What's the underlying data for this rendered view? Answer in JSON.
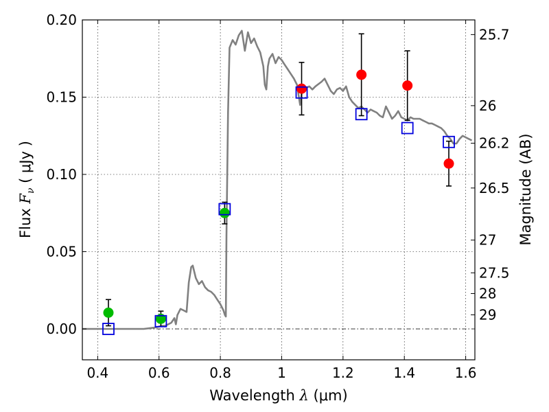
{
  "chart_data": {
    "type": "scatter",
    "title": "",
    "xlabel": "Wavelength  λ (μm)",
    "ylabel": "Flux  F_ν  ( μJy )",
    "ylabel_parts": {
      "pre": "Flux  ",
      "var": "F",
      "sub": "ν",
      "post": "  ( μJy )"
    },
    "xlabel_parts": {
      "pre": "Wavelength  ",
      "var": "λ",
      "post": " (μm)"
    },
    "y2label": "Magnitude (AB)",
    "xlim": [
      0.35,
      1.63
    ],
    "ylim": [
      -0.02,
      0.2
    ],
    "grid": true,
    "x_ticks": [
      {
        "value": 0.4,
        "label": "0.4"
      },
      {
        "value": 0.6,
        "label": "0.6"
      },
      {
        "value": 0.8,
        "label": "0.8"
      },
      {
        "value": 1.0,
        "label": "1"
      },
      {
        "value": 1.2,
        "label": "1.2"
      },
      {
        "value": 1.4,
        "label": "1.4"
      },
      {
        "value": 1.6,
        "label": "1.6"
      }
    ],
    "y_ticks": [
      {
        "value": 0.0,
        "label": "0.00"
      },
      {
        "value": 0.05,
        "label": "0.05"
      },
      {
        "value": 0.1,
        "label": "0.10"
      },
      {
        "value": 0.15,
        "label": "0.15"
      },
      {
        "value": 0.2,
        "label": "0.20"
      }
    ],
    "y2_ticks": [
      {
        "flux": 0.1905,
        "label": "25.7"
      },
      {
        "flux": 0.1445,
        "label": "26"
      },
      {
        "flux": 0.1202,
        "label": "26.2"
      },
      {
        "flux": 0.0912,
        "label": "26.5"
      },
      {
        "flux": 0.0575,
        "label": "27"
      },
      {
        "flux": 0.0363,
        "label": "27.5"
      },
      {
        "flux": 0.0229,
        "label": "28"
      },
      {
        "flux": 0.0091,
        "label": "29"
      }
    ],
    "colors": {
      "model": "#808080",
      "green": "#00bb00",
      "red": "#ff0000",
      "square": "#0000dd",
      "zero_line": "#000000"
    },
    "series": [
      {
        "kind": "line",
        "points": [
          [
            0.35,
            0.0
          ],
          [
            0.55,
            0.0
          ],
          [
            0.57,
            0.0005
          ],
          [
            0.59,
            0.001
          ],
          [
            0.6,
            0.0015
          ],
          [
            0.61,
            0.002
          ],
          [
            0.62,
            0.002
          ],
          [
            0.63,
            0.003
          ],
          [
            0.64,
            0.004
          ],
          [
            0.65,
            0.007
          ],
          [
            0.655,
            0.003
          ],
          [
            0.66,
            0.009
          ],
          [
            0.67,
            0.013
          ],
          [
            0.68,
            0.012
          ],
          [
            0.69,
            0.011
          ],
          [
            0.697,
            0.03
          ],
          [
            0.705,
            0.04
          ],
          [
            0.71,
            0.041
          ],
          [
            0.72,
            0.033
          ],
          [
            0.73,
            0.029
          ],
          [
            0.74,
            0.031
          ],
          [
            0.75,
            0.027
          ],
          [
            0.76,
            0.025
          ],
          [
            0.77,
            0.024
          ],
          [
            0.78,
            0.022
          ],
          [
            0.79,
            0.019
          ],
          [
            0.8,
            0.016
          ],
          [
            0.81,
            0.012
          ],
          [
            0.815,
            0.009
          ],
          [
            0.818,
            0.008
          ],
          [
            0.82,
            0.06
          ],
          [
            0.825,
            0.14
          ],
          [
            0.83,
            0.182
          ],
          [
            0.84,
            0.187
          ],
          [
            0.85,
            0.184
          ],
          [
            0.86,
            0.19
          ],
          [
            0.87,
            0.193
          ],
          [
            0.88,
            0.18
          ],
          [
            0.89,
            0.192
          ],
          [
            0.9,
            0.185
          ],
          [
            0.91,
            0.188
          ],
          [
            0.92,
            0.183
          ],
          [
            0.93,
            0.179
          ],
          [
            0.94,
            0.17
          ],
          [
            0.945,
            0.158
          ],
          [
            0.95,
            0.155
          ],
          [
            0.955,
            0.17
          ],
          [
            0.96,
            0.175
          ],
          [
            0.97,
            0.178
          ],
          [
            0.98,
            0.172
          ],
          [
            0.99,
            0.176
          ],
          [
            1.0,
            0.174
          ],
          [
            1.01,
            0.171
          ],
          [
            1.02,
            0.168
          ],
          [
            1.03,
            0.165
          ],
          [
            1.04,
            0.162
          ],
          [
            1.05,
            0.158
          ],
          [
            1.06,
            0.145
          ],
          [
            1.065,
            0.152
          ],
          [
            1.07,
            0.158
          ],
          [
            1.08,
            0.156
          ],
          [
            1.09,
            0.157
          ],
          [
            1.1,
            0.155
          ],
          [
            1.11,
            0.157
          ],
          [
            1.13,
            0.16
          ],
          [
            1.14,
            0.162
          ],
          [
            1.15,
            0.158
          ],
          [
            1.16,
            0.154
          ],
          [
            1.17,
            0.152
          ],
          [
            1.18,
            0.155
          ],
          [
            1.19,
            0.156
          ],
          [
            1.2,
            0.154
          ],
          [
            1.21,
            0.157
          ],
          [
            1.22,
            0.15
          ],
          [
            1.23,
            0.147
          ],
          [
            1.24,
            0.145
          ],
          [
            1.25,
            0.143
          ],
          [
            1.26,
            0.144
          ],
          [
            1.27,
            0.142
          ],
          [
            1.28,
            0.14
          ],
          [
            1.29,
            0.142
          ],
          [
            1.3,
            0.141
          ],
          [
            1.31,
            0.14
          ],
          [
            1.32,
            0.138
          ],
          [
            1.33,
            0.137
          ],
          [
            1.34,
            0.144
          ],
          [
            1.35,
            0.14
          ],
          [
            1.36,
            0.136
          ],
          [
            1.37,
            0.138
          ],
          [
            1.38,
            0.141
          ],
          [
            1.39,
            0.137
          ],
          [
            1.4,
            0.136
          ],
          [
            1.41,
            0.135
          ],
          [
            1.42,
            0.137
          ],
          [
            1.43,
            0.136
          ],
          [
            1.44,
            0.136
          ],
          [
            1.45,
            0.136
          ],
          [
            1.46,
            0.135
          ],
          [
            1.47,
            0.134
          ],
          [
            1.48,
            0.133
          ],
          [
            1.49,
            0.133
          ],
          [
            1.5,
            0.132
          ],
          [
            1.51,
            0.131
          ],
          [
            1.52,
            0.13
          ],
          [
            1.53,
            0.128
          ],
          [
            1.54,
            0.125
          ],
          [
            1.55,
            0.123
          ],
          [
            1.56,
            0.12
          ],
          [
            1.57,
            0.12
          ],
          [
            1.58,
            0.123
          ],
          [
            1.59,
            0.125
          ],
          [
            1.6,
            0.124
          ],
          [
            1.61,
            0.123
          ],
          [
            1.62,
            0.122
          ]
        ]
      },
      {
        "kind": "errorbar",
        "marker": "circle",
        "color_key": "green",
        "points": [
          {
            "x": 0.435,
            "y": 0.0105,
            "err": 0.0085
          },
          {
            "x": 0.606,
            "y": 0.0065,
            "err": 0.005
          },
          {
            "x": 0.814,
            "y": 0.075,
            "err": 0.007
          }
        ]
      },
      {
        "kind": "errorbar",
        "marker": "circle",
        "color_key": "red",
        "points": [
          {
            "x": 1.065,
            "y": 0.1555,
            "err": 0.017
          },
          {
            "x": 1.26,
            "y": 0.1645,
            "err": 0.0265
          },
          {
            "x": 1.41,
            "y": 0.1575,
            "err": 0.0225
          },
          {
            "x": 1.545,
            "y": 0.107,
            "err": 0.0145
          }
        ]
      },
      {
        "kind": "markers",
        "marker": "square",
        "color_key": "square",
        "points": [
          {
            "x": 0.435,
            "y": 0.0
          },
          {
            "x": 0.606,
            "y": 0.005
          },
          {
            "x": 0.814,
            "y": 0.0775
          },
          {
            "x": 1.065,
            "y": 0.153
          },
          {
            "x": 1.26,
            "y": 0.139
          },
          {
            "x": 1.41,
            "y": 0.13
          },
          {
            "x": 1.545,
            "y": 0.121
          }
        ]
      }
    ]
  }
}
